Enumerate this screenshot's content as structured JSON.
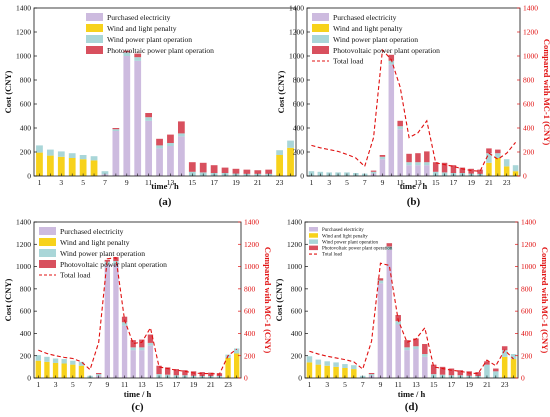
{
  "colors": {
    "purchased": "#cdbbdf",
    "penalty": "#f7d21b",
    "wind": "#a9d6d8",
    "pv": "#d8505e",
    "load": "#e01010",
    "right_axis": "#e01010"
  },
  "chart_data": [
    {
      "type": "bar",
      "panel_label": "(a)",
      "xlabel": "time / h",
      "ylabel": "Cost (CNY)",
      "ylim": [
        0,
        1400
      ],
      "yticks": [
        0,
        200,
        400,
        600,
        800,
        1000,
        1200,
        1400
      ],
      "xtick_labels": [
        "1",
        "3",
        "5",
        "7",
        "9",
        "11",
        "13",
        "15",
        "17",
        "19",
        "21",
        "23"
      ],
      "categories": [
        1,
        2,
        3,
        4,
        5,
        6,
        7,
        8,
        9,
        10,
        11,
        12,
        13,
        14,
        15,
        16,
        17,
        18,
        19,
        20,
        21,
        22,
        23,
        24
      ],
      "stacked": true,
      "legend_position": "top-center",
      "legend_font": "large",
      "series": [
        {
          "name": "Purchased electricity",
          "color_key": "purchased",
          "values": [
            0,
            0,
            0,
            0,
            0,
            0,
            15,
            375,
            1000,
            960,
            460,
            230,
            250,
            330,
            0,
            0,
            0,
            0,
            0,
            0,
            0,
            0,
            0,
            0
          ]
        },
        {
          "name": "Wind and light penalty",
          "color_key": "penalty",
          "values": [
            195,
            170,
            160,
            150,
            140,
            130,
            0,
            0,
            0,
            0,
            0,
            0,
            0,
            0,
            0,
            0,
            0,
            0,
            0,
            0,
            0,
            0,
            175,
            235
          ]
        },
        {
          "name": "Wind power plant operation",
          "color_key": "wind",
          "values": [
            60,
            50,
            45,
            40,
            35,
            35,
            25,
            15,
            30,
            30,
            30,
            25,
            25,
            25,
            35,
            30,
            25,
            25,
            20,
            18,
            18,
            18,
            40,
            60
          ]
        },
        {
          "name": "Photovoltaic power plant operation",
          "color_key": "pv",
          "values": [
            0,
            0,
            0,
            0,
            0,
            0,
            0,
            10,
            15,
            30,
            35,
            55,
            70,
            100,
            80,
            80,
            65,
            45,
            40,
            35,
            30,
            35,
            0,
            0
          ]
        }
      ]
    },
    {
      "type": "bar",
      "panel_label": "(b)",
      "xlabel": "time / h",
      "ylabel": "Cost (CNY)",
      "ylabel_right": "Compared with MC-1 (CNY)",
      "ylim": [
        0,
        1400
      ],
      "ylim_right": [
        0,
        1400
      ],
      "yticks": [
        0,
        200,
        400,
        600,
        800,
        1000,
        1200,
        1400
      ],
      "xtick_labels": [
        "1",
        "3",
        "5",
        "7",
        "9",
        "11",
        "13",
        "15",
        "17",
        "19",
        "21",
        "23"
      ],
      "categories": [
        1,
        2,
        3,
        4,
        5,
        6,
        7,
        8,
        9,
        10,
        11,
        12,
        13,
        14,
        15,
        16,
        17,
        18,
        19,
        20,
        21,
        22,
        23,
        24
      ],
      "stacked": true,
      "legend_position": "top-center",
      "legend_font": "large",
      "series": [
        {
          "name": "Purchased electricity",
          "color_key": "purchased",
          "values": [
            0,
            0,
            0,
            0,
            0,
            0,
            0,
            20,
            140,
            930,
            390,
            90,
            90,
            90,
            0,
            0,
            0,
            0,
            0,
            0,
            0,
            0,
            0,
            0
          ]
        },
        {
          "name": "Wind and light penalty",
          "color_key": "penalty",
          "values": [
            0,
            0,
            0,
            0,
            0,
            0,
            0,
            0,
            0,
            0,
            0,
            0,
            0,
            0,
            0,
            0,
            0,
            0,
            0,
            0,
            110,
            150,
            80,
            40
          ]
        },
        {
          "name": "Wind power plant operation",
          "color_key": "wind",
          "values": [
            40,
            35,
            30,
            30,
            30,
            25,
            20,
            15,
            20,
            30,
            25,
            25,
            25,
            25,
            35,
            30,
            25,
            25,
            20,
            18,
            80,
            40,
            60,
            50
          ]
        },
        {
          "name": "Photovoltaic power plant operation",
          "color_key": "pv",
          "values": [
            0,
            0,
            0,
            0,
            0,
            0,
            0,
            10,
            15,
            50,
            45,
            70,
            75,
            90,
            80,
            80,
            65,
            45,
            40,
            35,
            40,
            30,
            0,
            0
          ]
        }
      ],
      "line": {
        "name": "Total load",
        "color_key": "load",
        "axis": "right",
        "values": [
          255,
          235,
          220,
          205,
          180,
          150,
          80,
          320,
          1050,
          970,
          740,
          320,
          360,
          460,
          110,
          95,
          80,
          60,
          45,
          40,
          190,
          140,
          190,
          280
        ]
      }
    },
    {
      "type": "bar",
      "panel_label": "(c)",
      "xlabel": "time / h",
      "ylabel": "Cost (CNY)",
      "ylabel_right": "Compared with MC-1 (CNY)",
      "ylim": [
        0,
        1400
      ],
      "ylim_right": [
        0,
        1400
      ],
      "yticks": [
        0,
        200,
        400,
        600,
        800,
        1000,
        1200,
        1400
      ],
      "xtick_labels": [
        "1",
        "3",
        "5",
        "7",
        "9",
        "11",
        "13",
        "15",
        "17",
        "19",
        "21",
        "23"
      ],
      "categories": [
        1,
        2,
        3,
        4,
        5,
        6,
        7,
        8,
        9,
        10,
        11,
        12,
        13,
        14,
        15,
        16,
        17,
        18,
        19,
        20,
        21,
        22,
        23,
        24
      ],
      "stacked": true,
      "legend_position": "top-center",
      "legend_font": "large",
      "series": [
        {
          "name": "Purchased electricity",
          "color_key": "purchased",
          "values": [
            0,
            0,
            0,
            0,
            0,
            0,
            0,
            20,
            1020,
            1020,
            470,
            250,
            250,
            290,
            0,
            0,
            0,
            0,
            0,
            0,
            0,
            0,
            0,
            0
          ]
        },
        {
          "name": "Wind and light penalty",
          "color_key": "penalty",
          "values": [
            155,
            145,
            135,
            130,
            120,
            110,
            0,
            0,
            0,
            0,
            0,
            0,
            0,
            0,
            0,
            0,
            0,
            0,
            0,
            0,
            0,
            0,
            180,
            220
          ]
        },
        {
          "name": "Wind power plant operation",
          "color_key": "wind",
          "values": [
            50,
            45,
            40,
            40,
            35,
            35,
            20,
            15,
            25,
            30,
            30,
            25,
            25,
            25,
            35,
            30,
            25,
            25,
            20,
            18,
            18,
            18,
            30,
            45
          ]
        },
        {
          "name": "Photovoltaic power plant operation",
          "color_key": "pv",
          "values": [
            0,
            0,
            0,
            0,
            0,
            0,
            0,
            10,
            15,
            35,
            50,
            65,
            70,
            75,
            75,
            65,
            55,
            45,
            40,
            35,
            30,
            25,
            0,
            0
          ]
        }
      ],
      "line": {
        "name": "Total load",
        "color_key": "load",
        "axis": "right",
        "values": [
          250,
          220,
          200,
          185,
          175,
          145,
          75,
          320,
          1070,
          1080,
          520,
          310,
          320,
          450,
          100,
          85,
          70,
          60,
          45,
          40,
          40,
          35,
          200,
          260
        ]
      }
    },
    {
      "type": "bar",
      "panel_label": "(d)",
      "xlabel": "time / h",
      "ylabel": "Cost (CNY)",
      "ylabel_right": "Compared with MC-1 (CNY)",
      "ylim": [
        0,
        1400
      ],
      "ylim_right": [
        0,
        1400
      ],
      "yticks": [
        0,
        200,
        400,
        600,
        800,
        1000,
        1200,
        1400
      ],
      "xtick_labels": [
        "1",
        "3",
        "5",
        "7",
        "9",
        "11",
        "13",
        "15",
        "17",
        "19",
        "21",
        "23"
      ],
      "categories": [
        1,
        2,
        3,
        4,
        5,
        6,
        7,
        8,
        9,
        10,
        11,
        12,
        13,
        14,
        15,
        16,
        17,
        18,
        19,
        20,
        21,
        22,
        23,
        24
      ],
      "stacked": true,
      "legend_position": "top-left",
      "legend_font": "small",
      "series": [
        {
          "name": "Purchased electricity",
          "color_key": "purchased",
          "values": [
            0,
            0,
            0,
            0,
            0,
            0,
            0,
            20,
            850,
            1150,
            480,
            250,
            260,
            190,
            0,
            0,
            0,
            0,
            0,
            0,
            0,
            0,
            0,
            0
          ]
        },
        {
          "name": "Wind and light penalty",
          "color_key": "penalty",
          "values": [
            140,
            120,
            110,
            100,
            90,
            80,
            0,
            0,
            0,
            0,
            0,
            0,
            0,
            0,
            0,
            0,
            0,
            0,
            0,
            0,
            0,
            0,
            190,
            170
          ]
        },
        {
          "name": "Wind power plant operation",
          "color_key": "wind",
          "values": [
            55,
            45,
            40,
            40,
            35,
            35,
            20,
            15,
            25,
            30,
            30,
            25,
            25,
            25,
            35,
            30,
            25,
            25,
            20,
            18,
            120,
            60,
            60,
            45
          ]
        },
        {
          "name": "Photovoltaic power plant operation",
          "color_key": "pv",
          "values": [
            0,
            0,
            0,
            0,
            0,
            0,
            0,
            10,
            20,
            30,
            55,
            65,
            70,
            90,
            85,
            70,
            60,
            45,
            40,
            35,
            30,
            25,
            35,
            0
          ]
        }
      ],
      "line": {
        "name": "Total load",
        "color_key": "load",
        "axis": "right",
        "values": [
          240,
          215,
          195,
          180,
          165,
          145,
          80,
          330,
          1030,
          1010,
          520,
          320,
          350,
          450,
          100,
          85,
          70,
          60,
          45,
          40,
          160,
          110,
          250,
          170
        ]
      }
    }
  ]
}
